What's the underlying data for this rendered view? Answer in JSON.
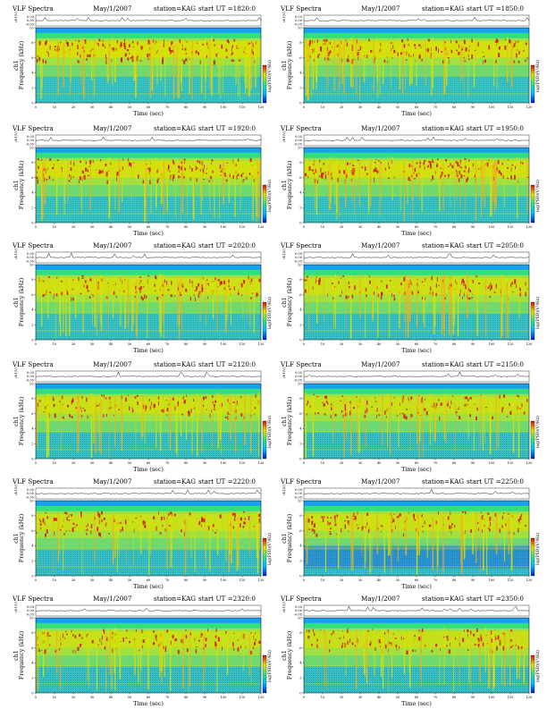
{
  "figure": {
    "title_prefix": "VLF Spectra",
    "date": "May/1/2007",
    "station": "station=KAG",
    "start_label": "start UT =",
    "time_axis_label": "Time (sec)",
    "waveform_label": "ch1(V)",
    "freq_axis_label": "Frequency (kHz)",
    "channel_label": "ch1",
    "colorbar_label": "log(PSD)(V²/Hz)"
  },
  "chart_data": [
    {
      "type": "heatmap",
      "start_ut": "1820:0",
      "ylim_waveform": [
        -0.05,
        0.05
      ],
      "intensity": 0.9,
      "quiet_band": false
    },
    {
      "type": "heatmap",
      "start_ut": "1850:0",
      "ylim_waveform": [
        -0.05,
        0.05
      ],
      "intensity": 0.85,
      "quiet_band": false
    },
    {
      "type": "heatmap",
      "start_ut": "1920:0",
      "ylim_waveform": [
        -0.05,
        0.05
      ],
      "intensity": 0.8,
      "quiet_band": false
    },
    {
      "type": "heatmap",
      "start_ut": "1950:0",
      "ylim_waveform": [
        -0.05,
        0.05
      ],
      "intensity": 0.8,
      "quiet_band": false
    },
    {
      "type": "heatmap",
      "start_ut": "2020:0",
      "ylim_waveform": [
        -0.05,
        0.05
      ],
      "intensity": 0.7,
      "quiet_band": false
    },
    {
      "type": "heatmap",
      "start_ut": "2050:0",
      "ylim_waveform": [
        -0.05,
        0.05
      ],
      "intensity": 0.6,
      "quiet_band": false
    },
    {
      "type": "heatmap",
      "start_ut": "2120:0",
      "ylim_waveform": [
        -0.05,
        0.05
      ],
      "intensity": 0.55,
      "quiet_band": false
    },
    {
      "type": "heatmap",
      "start_ut": "2150:0",
      "ylim_waveform": [
        -0.05,
        0.05
      ],
      "intensity": 0.5,
      "quiet_band": false
    },
    {
      "type": "heatmap",
      "start_ut": "2220:0",
      "ylim_waveform": [
        -0.05,
        0.05
      ],
      "intensity": 0.5,
      "quiet_band": false
    },
    {
      "type": "heatmap",
      "start_ut": "2250:0",
      "ylim_waveform": [
        -0.05,
        0.05
      ],
      "intensity": 0.55,
      "quiet_band": true
    },
    {
      "type": "heatmap",
      "start_ut": "2320:0",
      "ylim_waveform": [
        -0.05,
        0.05
      ],
      "intensity": 0.5,
      "quiet_band": false
    },
    {
      "type": "heatmap",
      "start_ut": "2350:0",
      "ylim_waveform": [
        -0.05,
        0.05
      ],
      "intensity": 0.45,
      "quiet_band": false
    }
  ],
  "axes": {
    "time_ticks": [
      "0",
      "10",
      "20",
      "30",
      "40",
      "50",
      "60",
      "70",
      "80",
      "90",
      "100",
      "110",
      "120"
    ],
    "freq_ticks": [
      "0",
      "2",
      "4",
      "6",
      "8",
      "10"
    ],
    "waveform_ticks": [
      "0.05",
      "0.00",
      "-0.05"
    ],
    "xlim": [
      0,
      120
    ],
    "ylim_freq": [
      0,
      10
    ]
  },
  "colors": {
    "low": "#0020c0",
    "mid_low": "#00b8ff",
    "mid": "#30e080",
    "mid_high": "#e0e000",
    "high": "#d01010"
  }
}
